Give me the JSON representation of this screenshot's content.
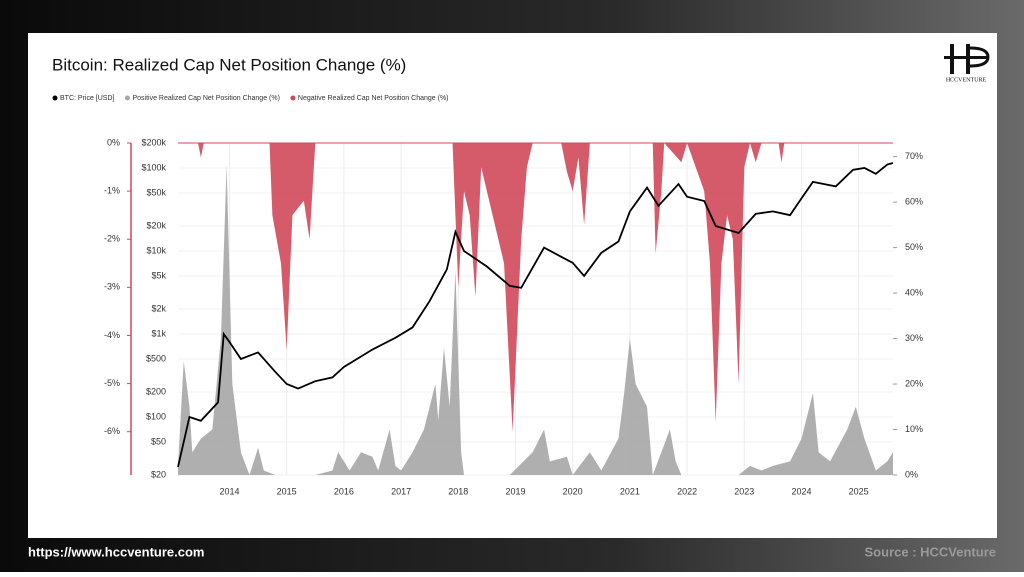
{
  "brand": "HCCVENTURE",
  "footer": {
    "url": "https://www.hccventure.com",
    "source": "Source : HCCVenture"
  },
  "chart_data": {
    "type": "line",
    "title": "Bitcoin: Realized Cap Net Position Change (%)",
    "xlim": [
      2013.1,
      2025.6
    ],
    "xticks": [
      2014,
      2015,
      2016,
      2017,
      2018,
      2019,
      2020,
      2021,
      2022,
      2023,
      2024,
      2025
    ],
    "ylim": [
      20,
      200000
    ],
    "log": true,
    "yticks": [
      {
        "value": 200000,
        "label": "$200k"
      },
      {
        "value": 100000,
        "label": "$100k"
      },
      {
        "value": 50000,
        "label": "$50k"
      },
      {
        "value": 20000,
        "label": "$20k"
      },
      {
        "value": 10000,
        "label": "$10k"
      },
      {
        "value": 5000,
        "label": "$5k"
      },
      {
        "value": 2000,
        "label": "$2k"
      },
      {
        "value": 1000,
        "label": "$1k"
      },
      {
        "value": 500,
        "label": "$500"
      },
      {
        "value": 200,
        "label": "$200"
      },
      {
        "value": 100,
        "label": "$100"
      },
      {
        "value": 50,
        "label": "$50"
      },
      {
        "value": 20,
        "label": "$20"
      }
    ],
    "y2lim": [
      0,
      73
    ],
    "y2ticks": [
      {
        "value": 70,
        "label": "70%"
      },
      {
        "value": 60,
        "label": "60%"
      },
      {
        "value": 50,
        "label": "50%"
      },
      {
        "value": 40,
        "label": "40%"
      },
      {
        "value": 30,
        "label": "30%"
      },
      {
        "value": 20,
        "label": "20%"
      },
      {
        "value": 10,
        "label": "10%"
      },
      {
        "value": 0,
        "label": "0%"
      }
    ],
    "y3lim": [
      -6.9,
      0
    ],
    "y3ticks": [
      {
        "value": 0,
        "label": "0%"
      },
      {
        "value": -1,
        "label": "-1%"
      },
      {
        "value": -2,
        "label": "-2%"
      },
      {
        "value": -3,
        "label": "-3%"
      },
      {
        "value": -4,
        "label": "-4%"
      },
      {
        "value": -5,
        "label": "-5%"
      },
      {
        "value": -6,
        "label": "-6%"
      }
    ],
    "grid": true,
    "series": [
      {
        "name": "BTC: Price [USD]",
        "color": "#000000",
        "axis": "y",
        "x": [
          2013.1,
          2013.3,
          2013.5,
          2013.8,
          2013.9,
          2014.0,
          2014.2,
          2014.5,
          2014.8,
          2015.0,
          2015.2,
          2015.5,
          2015.8,
          2016.0,
          2016.5,
          2016.9,
          2017.2,
          2017.5,
          2017.8,
          2017.95,
          2018.1,
          2018.5,
          2018.9,
          2019.1,
          2019.5,
          2019.8,
          2020.0,
          2020.2,
          2020.5,
          2020.8,
          2021.0,
          2021.3,
          2021.5,
          2021.85,
          2022.0,
          2022.3,
          2022.5,
          2022.9,
          2023.2,
          2023.5,
          2023.8,
          2024.0,
          2024.2,
          2024.6,
          2024.9,
          2025.1,
          2025.3,
          2025.5,
          2025.6
        ],
        "values": [
          25,
          100,
          90,
          150,
          1000,
          800,
          500,
          600,
          350,
          250,
          220,
          270,
          300,
          400,
          650,
          900,
          1200,
          2500,
          6000,
          17000,
          10000,
          6500,
          3800,
          3600,
          11000,
          8500,
          7200,
          5000,
          9500,
          13000,
          30000,
          58000,
          35000,
          64000,
          45000,
          40000,
          20000,
          16500,
          28000,
          30000,
          27000,
          43000,
          68000,
          60000,
          95000,
          100000,
          85000,
          110000,
          115000
        ]
      },
      {
        "name": "Positive Realized Cap Net Position Change (%)",
        "color": "#a6a6a6",
        "axis": "y2",
        "x": [
          2013.1,
          2013.2,
          2013.3,
          2013.35,
          2013.5,
          2013.7,
          2013.85,
          2013.95,
          2014.05,
          2014.2,
          2014.35,
          2014.5,
          2014.6,
          2014.8,
          2015.5,
          2015.8,
          2015.9,
          2016.1,
          2016.3,
          2016.5,
          2016.6,
          2016.8,
          2016.9,
          2017.0,
          2017.2,
          2017.4,
          2017.6,
          2017.65,
          2017.75,
          2017.85,
          2017.95,
          2018.05,
          2018.1,
          2018.9,
          2019.3,
          2019.5,
          2019.6,
          2019.9,
          2020.0,
          2020.3,
          2020.5,
          2020.8,
          2020.9,
          2021.0,
          2021.1,
          2021.3,
          2021.4,
          2021.7,
          2021.8,
          2021.9,
          2022.9,
          2023.1,
          2023.3,
          2023.5,
          2023.8,
          2024.0,
          2024.2,
          2024.3,
          2024.5,
          2024.8,
          2024.95,
          2025.1,
          2025.3,
          2025.5,
          2025.6
        ],
        "values": [
          2,
          25,
          15,
          5,
          8,
          10,
          30,
          68,
          20,
          5,
          0,
          6,
          1,
          0,
          0,
          1,
          5,
          1,
          5,
          4,
          1,
          10,
          2,
          1,
          5,
          10,
          20,
          12,
          28,
          15,
          45,
          5,
          0,
          0,
          5,
          10,
          3,
          4,
          0,
          5,
          1,
          8,
          18,
          30,
          20,
          15,
          0,
          10,
          3,
          0,
          0,
          2,
          1,
          2,
          3,
          8,
          18,
          5,
          3,
          10,
          15,
          8,
          1,
          3,
          5
        ]
      },
      {
        "name": "Negative Realized Cap Net Position Change (%)",
        "color": "#d0485a",
        "axis": "y3",
        "x": [
          2013.1,
          2013.45,
          2013.5,
          2013.55,
          2014.7,
          2014.75,
          2014.9,
          2015.0,
          2015.1,
          2015.3,
          2015.4,
          2015.5,
          2017.9,
          2018.0,
          2018.1,
          2018.2,
          2018.3,
          2018.4,
          2018.5,
          2018.8,
          2018.95,
          2019.1,
          2019.2,
          2019.3,
          2019.8,
          2019.9,
          2020.0,
          2020.1,
          2020.2,
          2020.3,
          2021.4,
          2021.45,
          2021.55,
          2021.6,
          2021.9,
          2022.0,
          2022.3,
          2022.4,
          2022.5,
          2022.6,
          2022.7,
          2022.8,
          2022.9,
          2023.0,
          2023.1,
          2023.2,
          2023.3,
          2023.6,
          2023.65,
          2023.7,
          2025.6
        ],
        "values": [
          0,
          0,
          -0.3,
          0,
          0,
          -1.5,
          -2.5,
          -4.3,
          -1.5,
          -1.2,
          -2,
          0,
          0,
          -3,
          -1,
          -1.5,
          -3.2,
          -0.5,
          -1,
          -2.5,
          -6,
          -2,
          -0.5,
          0,
          0,
          -0.6,
          -1,
          -0.3,
          -1.7,
          0,
          0,
          -2.3,
          -1,
          0,
          -0.4,
          0,
          -1,
          -2.5,
          -5.8,
          -2.5,
          -1.5,
          -2,
          -5,
          -0.5,
          0,
          -0.4,
          0,
          0,
          -0.4,
          0,
          0
        ]
      }
    ]
  }
}
